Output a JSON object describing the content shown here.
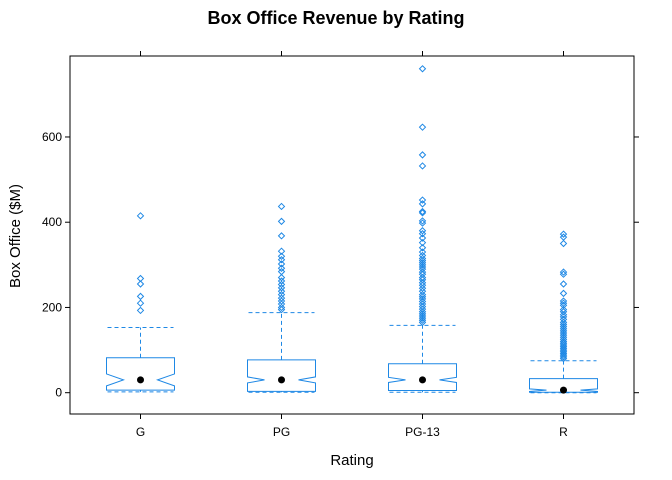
{
  "chart_data": {
    "type": "box",
    "title": "Box Office Revenue by Rating",
    "xlabel": "Rating",
    "ylabel": "Box Office ($M)",
    "ylim": [
      -50,
      790
    ],
    "yticks": [
      0,
      200,
      400,
      600
    ],
    "categories": [
      "G",
      "PG",
      "PG-13",
      "R"
    ],
    "notched": true,
    "color": "#1E88E5",
    "median_marker_color": "#000000",
    "boxes": [
      {
        "name": "G",
        "whisker_low": 2,
        "q1": 6,
        "median": 30,
        "q3": 82,
        "whisker_high": 153,
        "notch_low": 16,
        "notch_high": 44,
        "outliers": [
          415,
          268,
          255,
          226,
          210,
          193
        ]
      },
      {
        "name": "PG",
        "whisker_low": 1,
        "q1": 3,
        "median": 30,
        "q3": 77,
        "whisker_high": 188,
        "notch_low": 23,
        "notch_high": 37,
        "outliers": [
          437,
          402,
          368,
          332,
          320,
          312,
          302,
          292,
          284,
          270,
          262,
          254,
          246,
          238,
          230,
          222,
          215,
          208,
          200,
          195
        ]
      },
      {
        "name": "PG-13",
        "whisker_low": 1,
        "q1": 5,
        "median": 30,
        "q3": 68,
        "whisker_high": 158,
        "notch_low": 24,
        "notch_high": 36,
        "outliers": [
          760,
          623,
          558,
          532,
          452,
          443,
          425,
          422,
          403,
          398,
          380,
          373,
          363,
          352,
          340,
          330,
          322,
          315,
          310,
          305,
          300,
          295,
          290,
          283,
          278,
          270,
          265,
          258,
          252,
          245,
          238,
          230,
          225,
          220,
          214,
          208,
          202,
          196,
          190,
          185,
          180,
          175,
          170,
          165
        ]
      },
      {
        "name": "R",
        "whisker_low": 0,
        "q1": 1,
        "median": 6,
        "q3": 33,
        "whisker_high": 75,
        "notch_low": 3,
        "notch_high": 9,
        "outliers": [
          372,
          365,
          350,
          283,
          278,
          255,
          233,
          215,
          210,
          205,
          195,
          190,
          183,
          178,
          172,
          165,
          160,
          155,
          150,
          145,
          140,
          135,
          130,
          125,
          120,
          116,
          112,
          108,
          104,
          100,
          96,
          92,
          88,
          84,
          80
        ]
      }
    ]
  }
}
